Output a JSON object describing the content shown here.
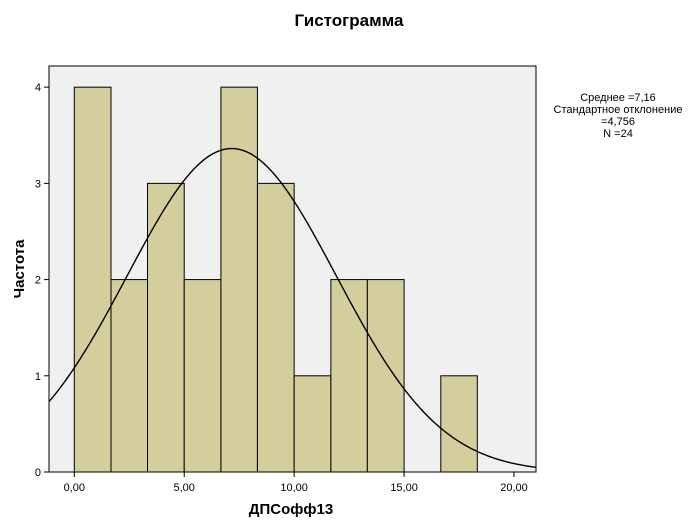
{
  "chart_data": {
    "type": "bar",
    "title": "Гистограмма",
    "xlabel": "ДПСофф13",
    "ylabel": "Частота",
    "xlim": [
      -1.15,
      21.0
    ],
    "ylim": [
      0,
      4.22
    ],
    "x_ticks": [
      {
        "value": 0,
        "label": "0,00"
      },
      {
        "value": 5,
        "label": "5,00"
      },
      {
        "value": 10,
        "label": "10,00"
      },
      {
        "value": 15,
        "label": "15,00"
      },
      {
        "value": 20,
        "label": "20,00"
      }
    ],
    "y_ticks": [
      {
        "value": 0,
        "label": "0"
      },
      {
        "value": 1,
        "label": "1"
      },
      {
        "value": 2,
        "label": "2"
      },
      {
        "value": 3,
        "label": "3"
      },
      {
        "value": 4,
        "label": "4"
      }
    ],
    "bins": [
      {
        "start": 0.0,
        "end": 1.67,
        "count": 4
      },
      {
        "start": 1.67,
        "end": 3.33,
        "count": 2
      },
      {
        "start": 3.33,
        "end": 5.0,
        "count": 3
      },
      {
        "start": 5.0,
        "end": 6.67,
        "count": 2
      },
      {
        "start": 6.67,
        "end": 8.33,
        "count": 4
      },
      {
        "start": 8.33,
        "end": 10.0,
        "count": 3
      },
      {
        "start": 10.0,
        "end": 11.67,
        "count": 1
      },
      {
        "start": 11.67,
        "end": 13.33,
        "count": 2
      },
      {
        "start": 13.33,
        "end": 15.0,
        "count": 2
      },
      {
        "start": 15.0,
        "end": 16.67,
        "count": 0
      },
      {
        "start": 16.67,
        "end": 18.33,
        "count": 1
      }
    ],
    "normal_curve": {
      "mean": 7.16,
      "sd": 4.756,
      "n": 24
    },
    "grid": false,
    "colors": {
      "bar_fill": "#d3ce9c",
      "bar_stroke": "#000000",
      "plot_bg": "#f0f0f0",
      "curve": "#000000"
    }
  },
  "stats_box": {
    "lines": [
      "Среднее =7,16",
      "Стандартное отклонение",
      "=4,756",
      "N =24"
    ]
  }
}
